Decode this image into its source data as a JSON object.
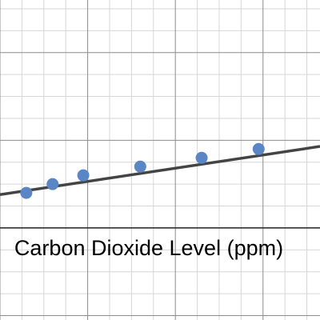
{
  "chart_data": {
    "type": "scatter",
    "xlabel": "Carbon Dioxide Level (ppm)",
    "ylabel": "",
    "grid": true,
    "series": [
      {
        "x": [
          0.6,
          1.2,
          1.9,
          3.2,
          4.6,
          5.9
        ],
        "y": [
          0.8,
          1.0,
          1.2,
          1.4,
          1.6,
          1.8
        ]
      }
    ],
    "trendline": {
      "x": [
        0,
        7.3
      ],
      "y": [
        0.76,
        1.86
      ]
    },
    "xlim": [
      0,
      7.3
    ],
    "ylim": [
      -2.1,
      5.2
    ],
    "colors": {
      "points": "#5a86c5",
      "trendline": "#444444",
      "grid_major": "#8c8c8c",
      "grid_minor": "#d6d6d6",
      "axis": "#222222",
      "label": "#000000"
    }
  }
}
